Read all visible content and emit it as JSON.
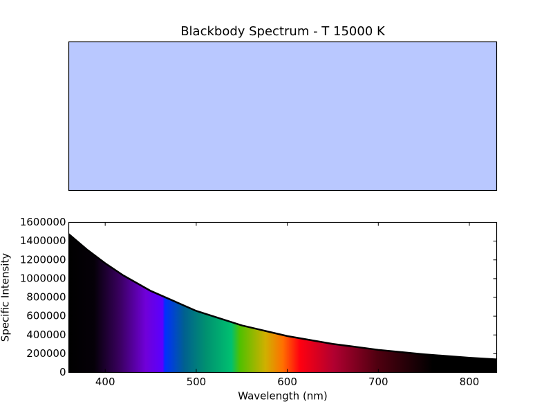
{
  "chart_data": {
    "type": "area",
    "title": "Blackbody Spectrum - T 15000 K",
    "swatch_color": "#b9c8ff",
    "x": [
      360,
      380,
      400,
      420,
      450,
      500,
      550,
      600,
      650,
      700,
      750,
      800,
      830
    ],
    "values": [
      1475000,
      1310000,
      1164000,
      1034000,
      869500,
      656500,
      501600,
      388000,
      304500,
      241000,
      193700,
      157000,
      139000
    ],
    "color": "#000000",
    "xlabel": "Wavelength (nm)",
    "ylabel": "Specific Intensity",
    "xlim": [
      360,
      830
    ],
    "ylim": [
      0,
      1600000
    ],
    "xticks": [
      400,
      500,
      600,
      700,
      800
    ],
    "yticks": [
      0,
      200000,
      400000,
      600000,
      800000,
      1000000,
      1200000,
      1400000,
      1600000
    ]
  }
}
